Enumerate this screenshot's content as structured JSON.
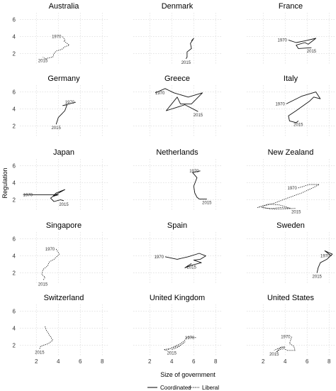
{
  "chart_data": {
    "type": "line",
    "x_axis_title": "Size of government",
    "y_axis_title": "Regulation",
    "xlim": [
      0.5,
      8.5
    ],
    "ylim": [
      0.8,
      6.8
    ],
    "x_ticks": [
      "2",
      "4",
      "6",
      "8"
    ],
    "y_ticks": [
      "2",
      "4",
      "6"
    ],
    "grid": true,
    "legend_position": "bottom",
    "legend": [
      {
        "label": "Coordinated",
        "dash": "solid"
      },
      {
        "label": "Liberal",
        "dash": "dotted"
      }
    ],
    "panels": [
      {
        "title": "Australia",
        "regime": "Liberal",
        "start_label": "1970",
        "end_label": "2015",
        "points": [
          [
            4.4,
            4.0
          ],
          [
            4.6,
            3.6
          ],
          [
            4.5,
            3.5
          ],
          [
            5.0,
            3.0
          ],
          [
            4.6,
            2.8
          ],
          [
            4.3,
            2.5
          ],
          [
            3.8,
            2.3
          ],
          [
            3.6,
            2.0
          ],
          [
            3.5,
            1.6
          ],
          [
            2.8,
            1.4
          ],
          [
            2.6,
            1.6
          ]
        ]
      },
      {
        "title": "Denmark",
        "regime": "Coordinated",
        "start_label": "",
        "end_label": "2015",
        "points": [
          [
            5.8,
            3.5
          ],
          [
            6.0,
            3.8
          ],
          [
            5.7,
            3.2
          ],
          [
            5.8,
            2.6
          ],
          [
            5.4,
            2.2
          ],
          [
            5.4,
            1.6
          ],
          [
            5.3,
            1.4
          ]
        ]
      },
      {
        "title": "France",
        "regime": "Coordinated",
        "start_label": "1970",
        "end_label": "2015",
        "points": [
          [
            4.3,
            3.6
          ],
          [
            5.0,
            3.3
          ],
          [
            5.8,
            3.5
          ],
          [
            6.8,
            3.8
          ],
          [
            6.6,
            3.6
          ],
          [
            6.1,
            3.1
          ],
          [
            5.8,
            3.3
          ],
          [
            5.0,
            3.0
          ],
          [
            5.2,
            2.6
          ],
          [
            6.4,
            2.7
          ]
        ]
      },
      {
        "title": "Germany",
        "regime": "Coordinated",
        "start_label": "1970",
        "end_label": "2015",
        "points": [
          [
            5.6,
            4.8
          ],
          [
            4.4,
            4.4
          ],
          [
            4.8,
            4.5
          ],
          [
            4.6,
            3.8
          ],
          [
            4.3,
            3.4
          ],
          [
            4.0,
            3.0
          ],
          [
            3.8,
            2.2
          ]
        ]
      },
      {
        "title": "Greece",
        "regime": "Coordinated",
        "start_label": "1970",
        "end_label": "2015",
        "points": [
          [
            2.5,
            5.9
          ],
          [
            3.4,
            6.4
          ],
          [
            4.2,
            5.9
          ],
          [
            5.5,
            5.4
          ],
          [
            6.8,
            5.9
          ],
          [
            5.8,
            4.6
          ],
          [
            4.8,
            4.6
          ],
          [
            4.5,
            5.4
          ],
          [
            3.5,
            3.8
          ],
          [
            5.2,
            4.5
          ],
          [
            6.4,
            3.7
          ]
        ]
      },
      {
        "title": "Italy",
        "regime": "Coordinated",
        "start_label": "1970",
        "end_label": "2015",
        "points": [
          [
            4.1,
            4.6
          ],
          [
            5.5,
            5.5
          ],
          [
            6.8,
            6.0
          ],
          [
            7.2,
            5.2
          ],
          [
            6.6,
            5.4
          ],
          [
            6.2,
            4.9
          ],
          [
            5.0,
            3.8
          ],
          [
            4.3,
            3.2
          ],
          [
            4.4,
            2.6
          ],
          [
            5.0,
            2.4
          ],
          [
            5.2,
            2.6
          ]
        ]
      },
      {
        "title": "Japan",
        "regime": "Coordinated",
        "start_label": "1970",
        "end_label": "2015",
        "points": [
          [
            0.8,
            2.6
          ],
          [
            3.0,
            2.6
          ],
          [
            4.0,
            2.6
          ],
          [
            3.5,
            2.4
          ],
          [
            3.8,
            2.8
          ],
          [
            4.2,
            3.0
          ],
          [
            4.6,
            3.2
          ],
          [
            3.6,
            2.5
          ],
          [
            3.3,
            2.2
          ],
          [
            3.6,
            1.8
          ],
          [
            4.2,
            2.0
          ],
          [
            4.5,
            1.9
          ]
        ]
      },
      {
        "title": "Netherlands",
        "regime": "Coordinated",
        "start_label": "1970",
        "end_label": "2015",
        "points": [
          [
            6.6,
            5.4
          ],
          [
            5.9,
            5.2
          ],
          [
            6.3,
            4.6
          ],
          [
            6.0,
            3.6
          ],
          [
            6.1,
            2.8
          ],
          [
            6.3,
            2.3
          ],
          [
            6.5,
            2.1
          ],
          [
            7.2,
            2.1
          ]
        ]
      },
      {
        "title": "New Zealand",
        "regime": "Liberal",
        "start_label": "1970",
        "end_label": "2015",
        "points": [
          [
            5.2,
            3.4
          ],
          [
            6.2,
            3.8
          ],
          [
            7.1,
            3.8
          ],
          [
            6.5,
            3.4
          ],
          [
            5.5,
            2.8
          ],
          [
            4.2,
            2.2
          ],
          [
            3.0,
            1.6
          ],
          [
            1.5,
            1.1
          ],
          [
            2.5,
            1.5
          ],
          [
            3.5,
            1.4
          ],
          [
            4.5,
            1.0
          ],
          [
            3.6,
            1.1
          ],
          [
            2.6,
            0.95
          ],
          [
            1.9,
            1.1
          ],
          [
            3.1,
            0.9
          ],
          [
            5.0,
            1.0
          ]
        ]
      },
      {
        "title": "Singapore",
        "regime": "Liberal",
        "start_label": "1970",
        "end_label": "2015",
        "points": [
          [
            3.8,
            4.8
          ],
          [
            4.1,
            4.2
          ],
          [
            3.6,
            3.6
          ],
          [
            3.2,
            3.3
          ],
          [
            3.0,
            2.8
          ],
          [
            2.6,
            2.4
          ],
          [
            2.5,
            1.8
          ],
          [
            2.8,
            1.5
          ],
          [
            2.6,
            1.1
          ]
        ]
      },
      {
        "title": "Spain",
        "regime": "Coordinated",
        "start_label": "1970",
        "end_label": "2015",
        "points": [
          [
            3.4,
            3.9
          ],
          [
            4.5,
            3.6
          ],
          [
            5.5,
            3.9
          ],
          [
            6.5,
            4.3
          ],
          [
            7.1,
            4.0
          ],
          [
            6.6,
            3.6
          ],
          [
            6.0,
            3.5
          ],
          [
            6.7,
            3.2
          ],
          [
            5.8,
            2.9
          ],
          [
            5.2,
            2.6
          ],
          [
            5.8,
            3.1
          ]
        ]
      },
      {
        "title": "Sweden",
        "regime": "Coordinated",
        "start_label": "1970",
        "end_label": "2015",
        "points": [
          [
            8.2,
            4.0
          ],
          [
            7.6,
            4.6
          ],
          [
            8.3,
            4.2
          ],
          [
            7.8,
            3.6
          ],
          [
            7.2,
            3.2
          ],
          [
            7.0,
            2.6
          ],
          [
            6.9,
            2.0
          ]
        ]
      },
      {
        "title": "Switzerland",
        "regime": "Liberal",
        "start_label": "",
        "end_label": "2015",
        "points": [
          [
            2.8,
            4.2
          ],
          [
            2.9,
            3.8
          ],
          [
            3.2,
            3.2
          ],
          [
            3.5,
            2.6
          ],
          [
            3.1,
            2.2
          ],
          [
            2.4,
            1.9
          ],
          [
            2.3,
            1.6
          ]
        ]
      },
      {
        "title": "United Kingdom",
        "regime": "Liberal",
        "start_label": "1970",
        "end_label": "2015",
        "points": [
          [
            6.2,
            2.9
          ],
          [
            5.4,
            3.0
          ],
          [
            5.2,
            2.6
          ],
          [
            4.8,
            2.2
          ],
          [
            4.0,
            1.7
          ],
          [
            3.5,
            1.4
          ],
          [
            3.3,
            1.5
          ],
          [
            3.8,
            1.6
          ],
          [
            4.3,
            1.8
          ],
          [
            4.8,
            2.0
          ],
          [
            5.2,
            2.4
          ],
          [
            4.6,
            1.8
          ],
          [
            4.0,
            1.5
          ]
        ]
      },
      {
        "title": "United States",
        "regime": "Liberal",
        "start_label": "1970",
        "end_label": "2015",
        "points": [
          [
            4.6,
            3.0
          ],
          [
            4.5,
            2.6
          ],
          [
            4.4,
            2.2
          ],
          [
            4.8,
            1.9
          ],
          [
            4.9,
            1.4
          ],
          [
            4.2,
            1.4
          ],
          [
            3.9,
            1.6
          ],
          [
            3.5,
            1.5
          ],
          [
            3.2,
            1.2
          ],
          [
            3.6,
            1.8
          ],
          [
            4.0,
            1.8
          ],
          [
            3.3,
            1.6
          ],
          [
            3.0,
            1.4
          ]
        ]
      }
    ]
  }
}
